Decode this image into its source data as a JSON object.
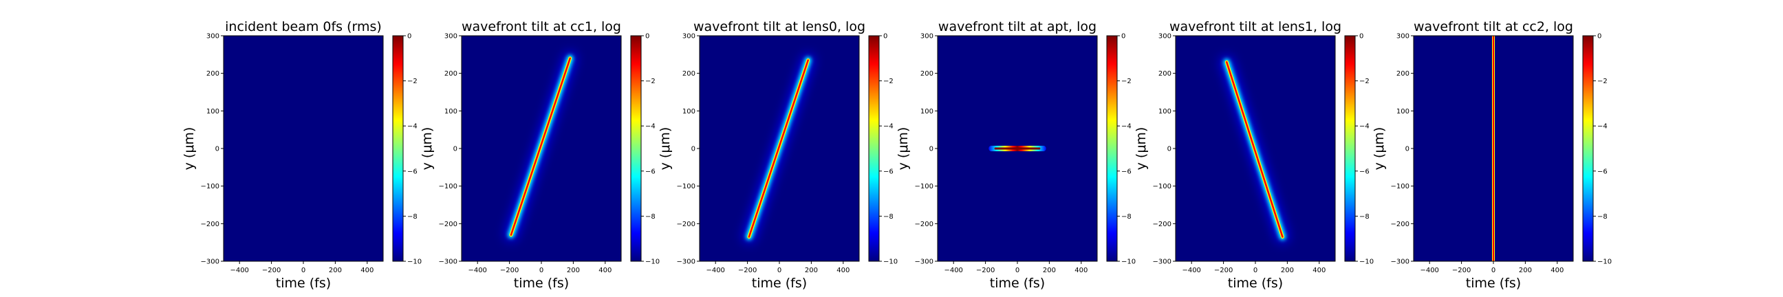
{
  "colormap": [
    "#00007f",
    "#0000ff",
    "#007fff",
    "#00ffff",
    "#7fff7f",
    "#ffff00",
    "#ff7f00",
    "#ff0000",
    "#7f0000"
  ],
  "chart_data": [
    {
      "type": "heatmap",
      "title": "incident beam 0fs (rms)",
      "xlabel": "time (fs)",
      "ylabel": "y (μm)",
      "xlim": [
        -500,
        500
      ],
      "ylim": [
        -300,
        300
      ],
      "xticks": [
        -400,
        -200,
        0,
        200,
        400
      ],
      "yticks": [
        -300,
        -200,
        -100,
        0,
        100,
        200,
        300
      ],
      "colorbar": {
        "range": [
          -10,
          0
        ],
        "ticks": [
          0,
          -2,
          -4,
          -6,
          -8,
          -10
        ],
        "tick_labels": [
          "0",
          "−2",
          "−4",
          "−6",
          "−8",
          "−10"
        ]
      },
      "features": []
    },
    {
      "type": "heatmap",
      "title": "wavefront tilt at cc1, log",
      "xlabel": "time (fs)",
      "ylabel": "y (μm)",
      "xlim": [
        -500,
        500
      ],
      "ylim": [
        -300,
        300
      ],
      "xticks": [
        -400,
        -200,
        0,
        200,
        400
      ],
      "yticks": [
        -300,
        -200,
        -100,
        0,
        100,
        200,
        300
      ],
      "colorbar": {
        "range": [
          -10,
          0
        ],
        "ticks": [
          0,
          -2,
          -4,
          -6,
          -8,
          -10
        ],
        "tick_labels": [
          "0",
          "−2",
          "−4",
          "−6",
          "−8",
          "−10"
        ]
      },
      "features": [
        {
          "kind": "tilted_stripe",
          "from": [
            -190,
            -230
          ],
          "to": [
            180,
            240
          ],
          "peak_log": 0
        }
      ]
    },
    {
      "type": "heatmap",
      "title": "wavefront tilt at lens0, log",
      "xlabel": "time (fs)",
      "ylabel": "y (μm)",
      "xlim": [
        -500,
        500
      ],
      "ylim": [
        -300,
        300
      ],
      "xticks": [
        -400,
        -200,
        0,
        200,
        400
      ],
      "yticks": [
        -300,
        -200,
        -100,
        0,
        100,
        200,
        300
      ],
      "colorbar": {
        "range": [
          -10,
          0
        ],
        "ticks": [
          0,
          -2,
          -4,
          -6,
          -8,
          -10
        ],
        "tick_labels": [
          "0",
          "−2",
          "−4",
          "−6",
          "−8",
          "−10"
        ]
      },
      "features": [
        {
          "kind": "tilted_stripe",
          "from": [
            -190,
            -235
          ],
          "to": [
            180,
            235
          ],
          "peak_log": 0
        }
      ]
    },
    {
      "type": "heatmap",
      "title": "wavefront tilt at apt, log",
      "xlabel": "time (fs)",
      "ylabel": "y (μm)",
      "xlim": [
        -500,
        500
      ],
      "ylim": [
        -300,
        300
      ],
      "xticks": [
        -400,
        -200,
        0,
        200,
        400
      ],
      "yticks": [
        -300,
        -200,
        -100,
        0,
        100,
        200,
        300
      ],
      "colorbar": {
        "range": [
          -10,
          0
        ],
        "ticks": [
          0,
          -2,
          -4,
          -6,
          -8,
          -10
        ],
        "tick_labels": [
          "0",
          "−2",
          "−4",
          "−6",
          "−8",
          "−10"
        ]
      },
      "features": [
        {
          "kind": "horizontal_line",
          "from": [
            -180,
            0
          ],
          "to": [
            180,
            0
          ],
          "peak_log": 0
        }
      ]
    },
    {
      "type": "heatmap",
      "title": "wavefront tilt at lens1, log",
      "xlabel": "time (fs)",
      "ylabel": "y (μm)",
      "xlim": [
        -500,
        500
      ],
      "ylim": [
        -300,
        300
      ],
      "xticks": [
        -400,
        -200,
        0,
        200,
        400
      ],
      "yticks": [
        -300,
        -200,
        -100,
        0,
        100,
        200,
        300
      ],
      "colorbar": {
        "range": [
          -10,
          0
        ],
        "ticks": [
          0,
          -2,
          -4,
          -6,
          -8,
          -10
        ],
        "tick_labels": [
          "0",
          "−2",
          "−4",
          "−6",
          "−8",
          "−10"
        ]
      },
      "features": [
        {
          "kind": "tilted_stripe",
          "from": [
            -180,
            230
          ],
          "to": [
            170,
            -235
          ],
          "peak_log": 0
        }
      ]
    },
    {
      "type": "heatmap",
      "title": "wavefront tilt at cc2, log",
      "xlabel": "time (fs)",
      "ylabel": "y (μm)",
      "xlim": [
        -500,
        500
      ],
      "ylim": [
        -300,
        300
      ],
      "xticks": [
        -400,
        -200,
        0,
        200,
        400
      ],
      "yticks": [
        -300,
        -200,
        -100,
        0,
        100,
        200,
        300
      ],
      "colorbar": {
        "range": [
          -10,
          0
        ],
        "ticks": [
          0,
          -2,
          -4,
          -6,
          -8,
          -10
        ],
        "tick_labels": [
          "0",
          "−2",
          "−4",
          "−6",
          "−8",
          "−10"
        ]
      },
      "features": [
        {
          "kind": "vertical_line",
          "from": [
            0,
            -300
          ],
          "to": [
            0,
            300
          ],
          "peak_log": 0
        }
      ]
    }
  ]
}
